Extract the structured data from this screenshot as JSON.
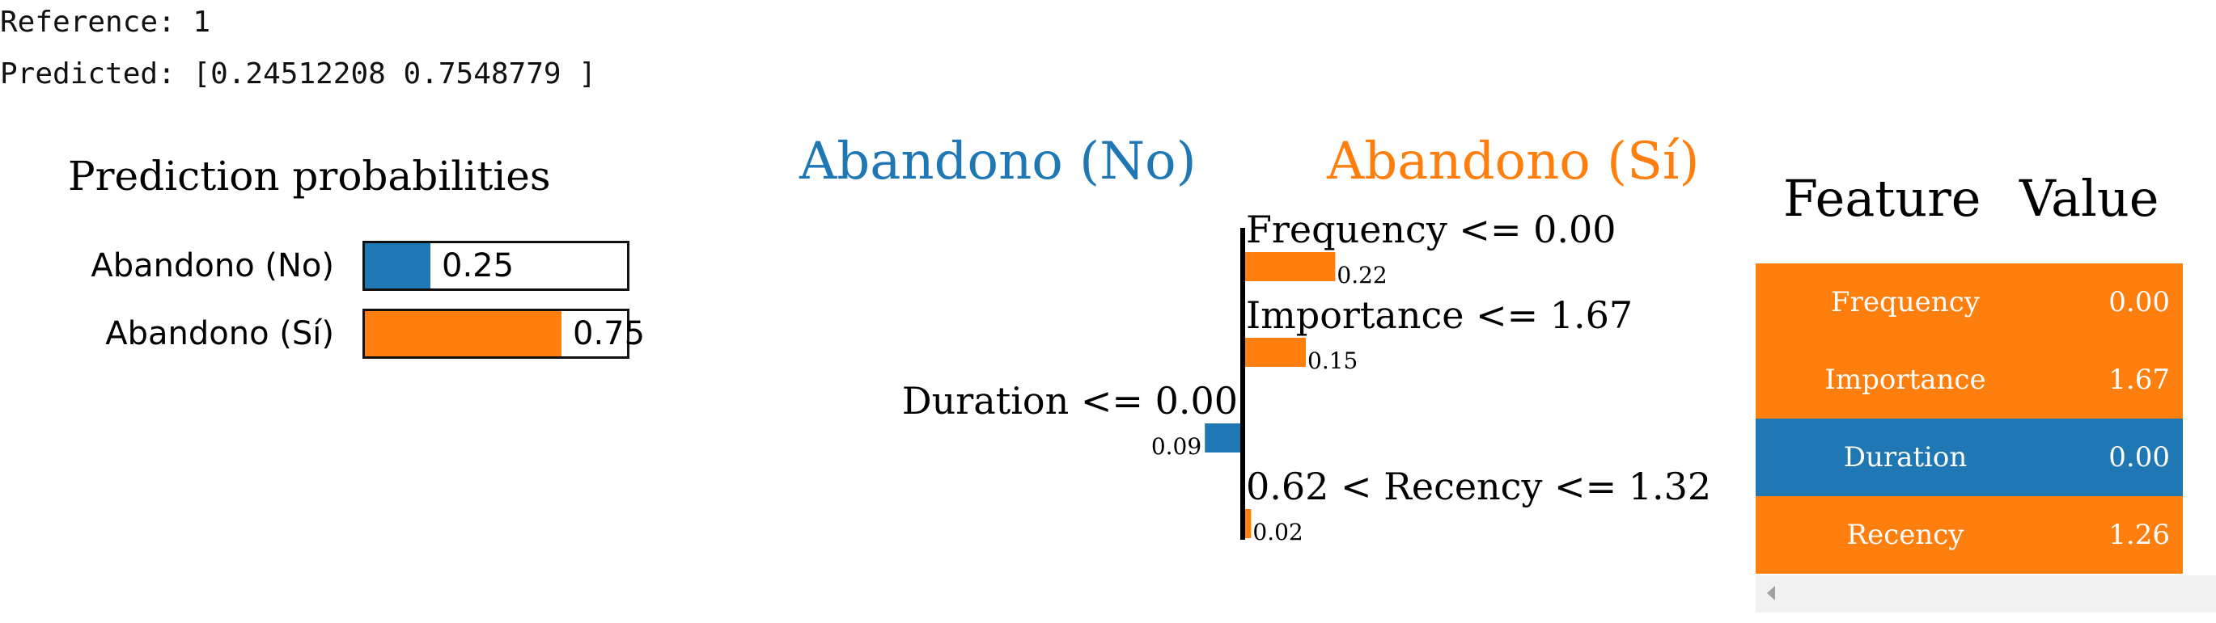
{
  "console": {
    "reference_line": "Reference: 1",
    "predicted_line": "Predicted: [0.24512208 0.7548779 ]"
  },
  "colors": {
    "no": "#1f77b4",
    "si": "#ff7f0e"
  },
  "prediction_probabilities": {
    "title": "Prediction probabilities",
    "rows": [
      {
        "label": "Abandono (No)",
        "value": 0.25,
        "value_text": "0.25",
        "color": "#1f77b4"
      },
      {
        "label": "Abandono (Sí)",
        "value": 0.75,
        "value_text": "0.75",
        "color": "#ff7f0e"
      }
    ]
  },
  "chart_data": {
    "type": "bar",
    "orientation": "horizontal-diverging",
    "left_class": "Abandono (No)",
    "right_class": "Abandono (Sí)",
    "categories": [
      "Frequency <= 0.00",
      "Importance <= 1.67",
      "Duration <= 0.00",
      "0.62 < Recency <= 1.32"
    ],
    "values": [
      0.22,
      0.15,
      -0.09,
      0.02
    ],
    "value_labels": [
      "0.22",
      "0.15",
      "0.09",
      "0.02"
    ]
  },
  "feature_table": {
    "headers": {
      "feature": "Feature",
      "value": "Value"
    },
    "rows": [
      {
        "feature": "Frequency",
        "value": "0.00",
        "side": "si"
      },
      {
        "feature": "Importance",
        "value": "1.67",
        "side": "si"
      },
      {
        "feature": "Duration",
        "value": "0.00",
        "side": "no"
      },
      {
        "feature": "Recency",
        "value": "1.26",
        "side": "si"
      }
    ]
  }
}
